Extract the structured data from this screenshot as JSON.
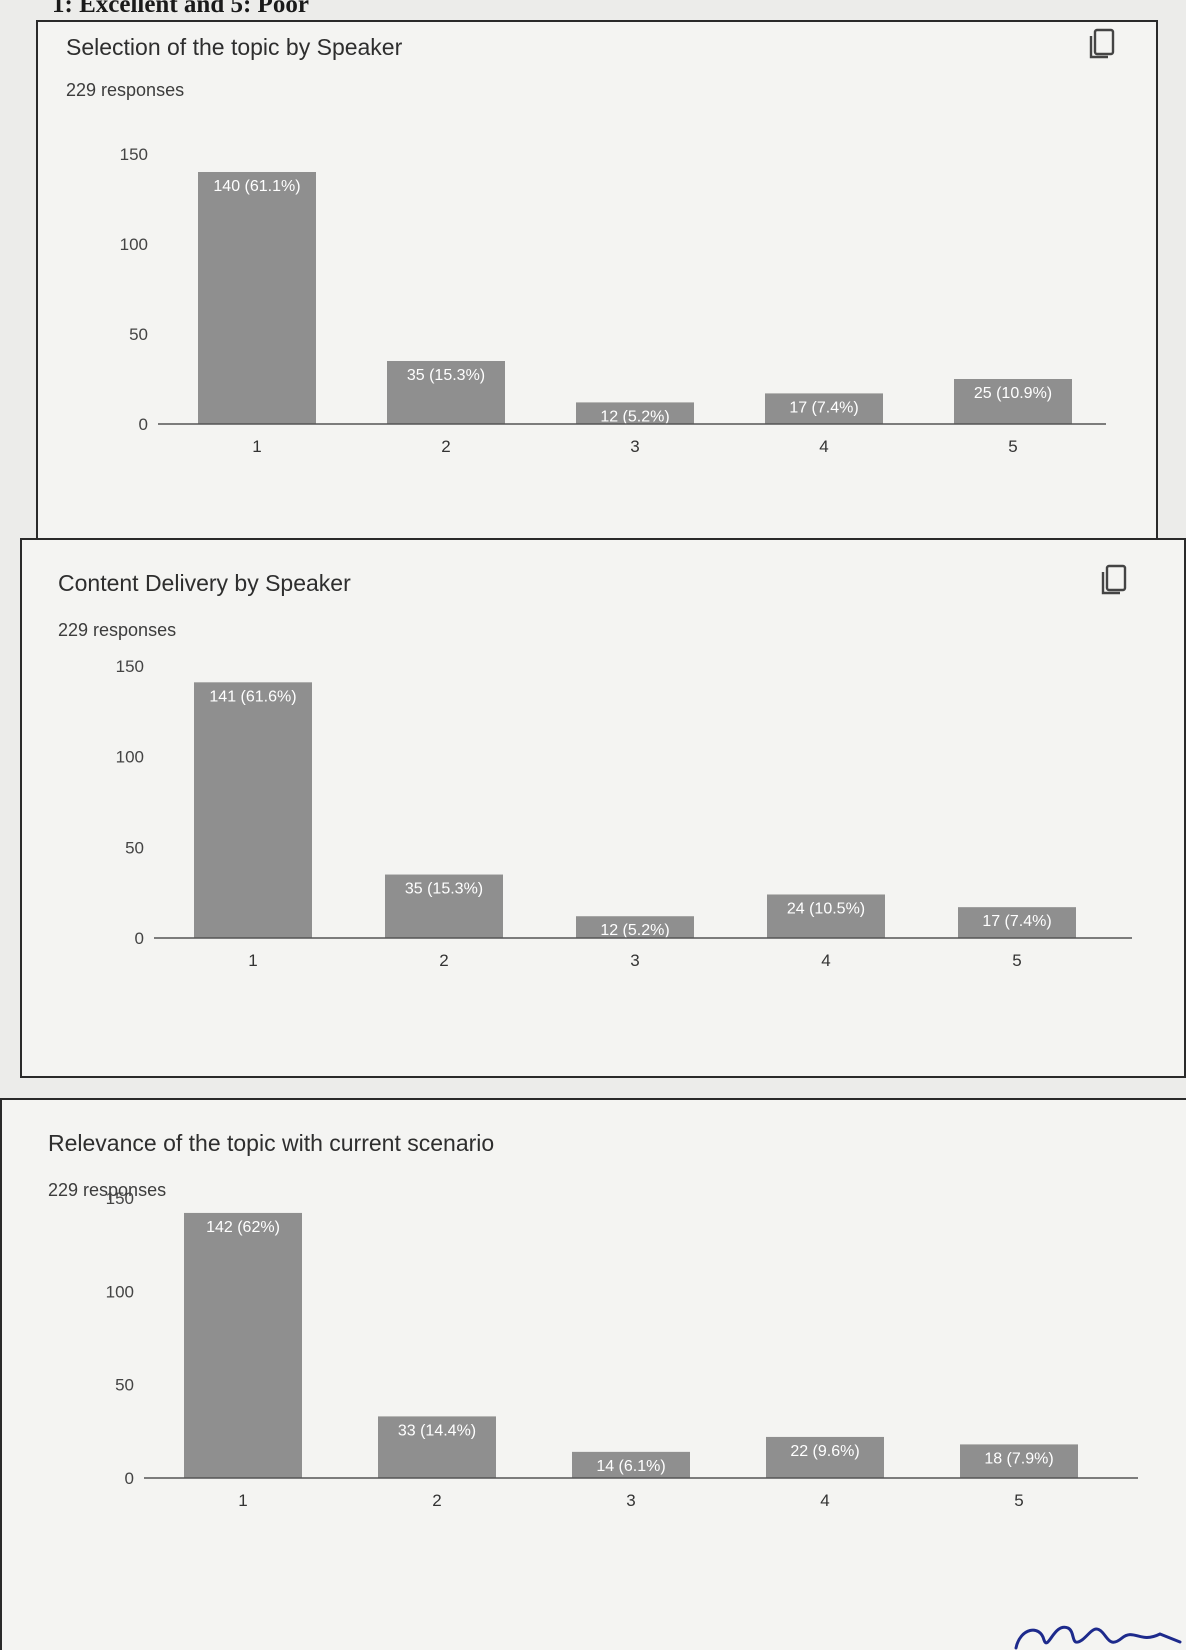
{
  "page": {
    "heading": "1: Excellent and 5: Poor"
  },
  "colors": {
    "bar": "#8f8f8f",
    "axis": "#555555",
    "label_inside": "#ffffff",
    "label_outside": "#333333",
    "signature_ink": "#1d2a8c"
  },
  "cards": [
    {
      "title": "Selection of the topic by Speaker",
      "responses": "229 responses",
      "copy_icon": "copy-icon"
    },
    {
      "title": "Content Delivery by Speaker",
      "responses": "229 responses",
      "copy_icon": "copy-icon"
    },
    {
      "title": "Relevance of the topic with current scenario",
      "responses": "229 responses"
    }
  ],
  "chart_data": [
    {
      "type": "bar",
      "title": "Selection of the topic by Speaker",
      "categories": [
        "1",
        "2",
        "3",
        "4",
        "5"
      ],
      "values": [
        140,
        35,
        12,
        17,
        25
      ],
      "labels": [
        "140 (61.1%)",
        "35 (15.3%)",
        "12 (5.2%)",
        "17 (7.4%)",
        "25 (10.9%)"
      ],
      "yticks": [
        0,
        50,
        100,
        150
      ],
      "ylim": [
        0,
        150
      ],
      "grid": false
    },
    {
      "type": "bar",
      "title": "Content Delivery by Speaker",
      "categories": [
        "1",
        "2",
        "3",
        "4",
        "5"
      ],
      "values": [
        141,
        35,
        12,
        24,
        17
      ],
      "labels": [
        "141 (61.6%)",
        "35 (15.3%)",
        "12 (5.2%)",
        "24 (10.5%)",
        "17 (7.4%)"
      ],
      "yticks": [
        0,
        50,
        100,
        150
      ],
      "ylim": [
        0,
        150
      ],
      "grid": false
    },
    {
      "type": "bar",
      "title": "Relevance of the topic with current scenario",
      "categories": [
        "1",
        "2",
        "3",
        "4",
        "5"
      ],
      "values": [
        142,
        33,
        14,
        22,
        18
      ],
      "labels": [
        "142 (62%)",
        "33 (14.4%)",
        "14 (6.1%)",
        "22 (9.6%)",
        "18 (7.9%)"
      ],
      "yticks": [
        0,
        50,
        100,
        150
      ],
      "ylim": [
        0,
        150
      ],
      "grid": false
    }
  ]
}
